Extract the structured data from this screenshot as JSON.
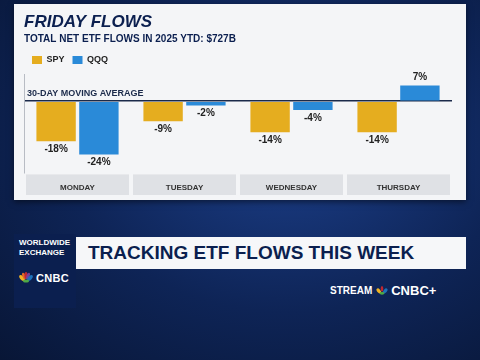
{
  "chart_data": {
    "type": "bar",
    "title": "FRIDAY FLOWS",
    "subtitle": "TOTAL NET ETF FLOWS IN 2025 YTD: $727B",
    "annotation": "30-DAY MOVING AVERAGE",
    "categories": [
      "MONDAY",
      "TUESDAY",
      "WEDNESDAY",
      "THURSDAY"
    ],
    "series": [
      {
        "name": "SPY",
        "color": "#e5ad1f",
        "values": [
          -18,
          -9,
          -14,
          -14
        ],
        "value_labels": [
          "-18%",
          "-9%",
          "-14%",
          "-14%"
        ]
      },
      {
        "name": "QQQ",
        "color": "#2a8ad8",
        "values": [
          -24,
          -2,
          -4,
          7
        ],
        "value_labels": [
          "-24%",
          "-2%",
          "-4%",
          "7%"
        ]
      }
    ],
    "ylim": [
      -32,
      12
    ],
    "yticks": [
      0
    ],
    "grid": true,
    "legend": "top-left",
    "data_labels": true,
    "tick_labels": "x"
  },
  "banner": {
    "show": "WORLDWIDE EXCHANGE",
    "headline": "TRACKING ETF FLOWS THIS WEEK",
    "network": "CNBC",
    "stream": "STREAM",
    "stream_brand": "CNBC+"
  }
}
